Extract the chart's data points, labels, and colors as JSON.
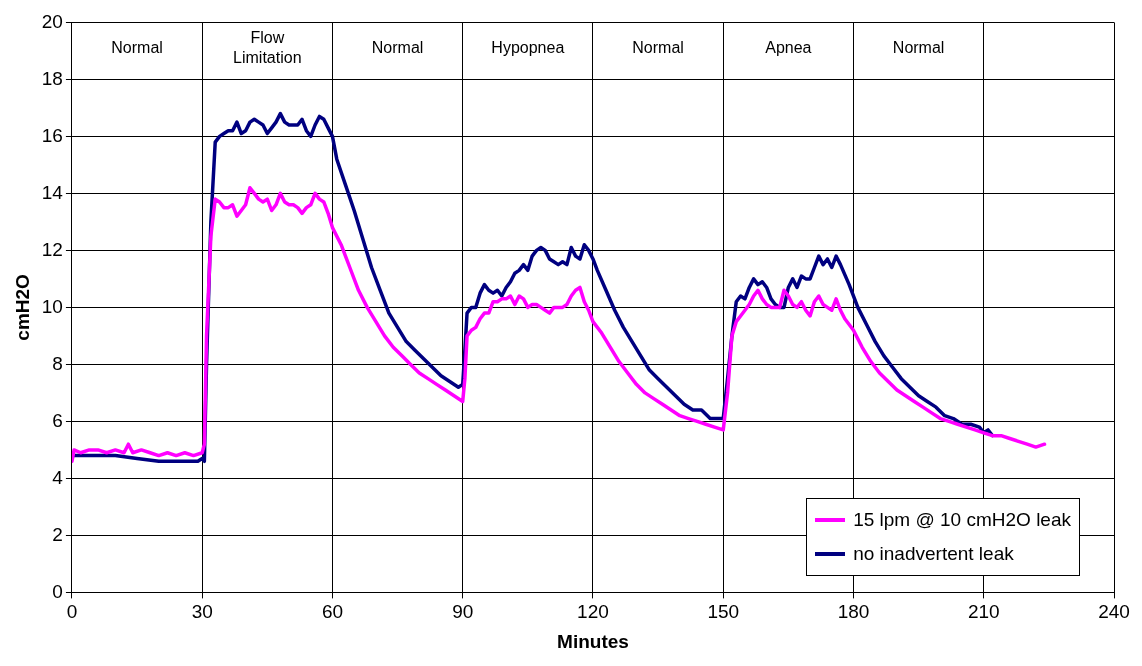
{
  "chart_data": {
    "type": "line",
    "xlabel": "Minutes",
    "ylabel": "cmH2O",
    "xlim": [
      0,
      240
    ],
    "xticks": [
      0,
      30,
      60,
      90,
      120,
      150,
      180,
      210,
      240
    ],
    "ylim": [
      0,
      20
    ],
    "yticks": [
      0,
      2,
      4,
      6,
      8,
      10,
      12,
      14,
      16,
      18,
      20
    ],
    "grid": true,
    "legend": "bottom right",
    "marker": "none",
    "line_style": "solid",
    "annotations": [
      "Normal",
      "Flow Limitation",
      "Normal",
      "Hypopnea",
      "Normal",
      "Apnea",
      "Normal"
    ],
    "series": [
      {
        "name": "15 lpm @ 10 cmH2O leak",
        "color": "#ff00ff",
        "x": [
          0,
          0.5,
          2,
          4,
          6,
          8,
          10,
          12,
          13,
          14,
          16,
          18,
          20,
          22,
          24,
          26,
          28,
          30,
          30.5,
          31,
          32,
          33,
          34,
          35,
          36,
          37,
          38,
          39,
          40,
          41,
          42,
          43,
          44,
          45,
          46,
          47,
          48,
          49,
          50,
          51,
          52,
          53,
          54,
          55,
          56,
          57,
          58,
          59,
          60,
          62,
          64,
          66,
          68,
          70,
          72,
          74,
          76,
          78,
          80,
          82,
          84,
          86,
          88,
          90,
          90.5,
          91,
          92,
          93,
          94,
          95,
          96,
          97,
          98,
          99,
          100,
          101,
          102,
          103,
          104,
          105,
          106,
          107,
          108,
          109,
          110,
          111,
          112,
          113,
          114,
          115,
          116,
          117,
          118,
          119,
          120,
          122,
          124,
          126,
          128,
          130,
          132,
          134,
          136,
          138,
          140,
          142,
          144,
          146,
          148,
          150,
          151,
          152,
          153,
          154,
          155,
          156,
          157,
          158,
          159,
          160,
          161,
          162,
          163,
          164,
          165,
          166,
          167,
          168,
          169,
          170,
          171,
          172,
          173,
          174,
          175,
          176,
          177,
          178,
          180,
          182,
          184,
          186,
          188,
          190,
          192,
          194,
          196,
          198,
          200,
          202,
          204,
          206,
          208,
          210,
          212,
          214,
          216,
          218,
          220,
          222,
          224
        ],
        "values": [
          4.6,
          5.0,
          4.9,
          5.0,
          5.0,
          4.9,
          5.0,
          4.9,
          5.2,
          4.9,
          5.0,
          4.9,
          4.8,
          4.9,
          4.8,
          4.9,
          4.8,
          4.9,
          5.2,
          9,
          12.5,
          13.8,
          13.7,
          13.5,
          13.5,
          13.6,
          13.2,
          13.4,
          13.6,
          14.2,
          14.0,
          13.8,
          13.7,
          13.8,
          13.4,
          13.6,
          14.0,
          13.7,
          13.6,
          13.6,
          13.5,
          13.3,
          13.5,
          13.6,
          14.0,
          13.8,
          13.7,
          13.3,
          12.8,
          12.2,
          11.4,
          10.6,
          10.0,
          9.5,
          9.0,
          8.6,
          8.3,
          8.0,
          7.7,
          7.5,
          7.3,
          7.1,
          6.9,
          6.7,
          7.5,
          9.0,
          9.2,
          9.3,
          9.6,
          9.8,
          9.8,
          10.2,
          10.2,
          10.3,
          10.3,
          10.4,
          10.1,
          10.4,
          10.3,
          10.0,
          10.1,
          10.1,
          10.0,
          9.9,
          9.8,
          10.0,
          10.0,
          10.0,
          10.1,
          10.4,
          10.6,
          10.7,
          10.2,
          9.9,
          9.5,
          9.1,
          8.6,
          8.1,
          7.7,
          7.3,
          7.0,
          6.8,
          6.6,
          6.4,
          6.2,
          6.1,
          6.0,
          5.9,
          5.8,
          5.7,
          7,
          9.0,
          9.5,
          9.7,
          9.9,
          10.1,
          10.4,
          10.6,
          10.3,
          10.1,
          10.0,
          10.0,
          10.0,
          10.6,
          10.4,
          10.1,
          10.0,
          10.2,
          9.9,
          9.7,
          10.2,
          10.4,
          10.1,
          10.0,
          9.9,
          10.3,
          9.9,
          9.6,
          9.2,
          8.6,
          8.1,
          7.7,
          7.4,
          7.1,
          6.9,
          6.7,
          6.5,
          6.3,
          6.1,
          6.0,
          5.9,
          5.8,
          5.7,
          5.6,
          5.5,
          5.5,
          5.4,
          5.3,
          5.2,
          5.1,
          5.2
        ]
      },
      {
        "name": "no inadvertent leak",
        "color": "#000080",
        "x": [
          0,
          5,
          10,
          15,
          20,
          25,
          29,
          30,
          30.5,
          31,
          32,
          33,
          34,
          35,
          36,
          37,
          38,
          39,
          40,
          41,
          42,
          43,
          44,
          45,
          46,
          47,
          48,
          49,
          50,
          52,
          53,
          54,
          55,
          56,
          57,
          58,
          59,
          60,
          61,
          63,
          65,
          67,
          69,
          71,
          73,
          75,
          77,
          79,
          81,
          83,
          85,
          87,
          89,
          90,
          90.5,
          91,
          92,
          93,
          94,
          95,
          96,
          97,
          98,
          99,
          100,
          101,
          102,
          103,
          104,
          105,
          106,
          107,
          108,
          109,
          110,
          111,
          112,
          113,
          114,
          115,
          116,
          117,
          118,
          119,
          120,
          121,
          123,
          125,
          127,
          129,
          131,
          133,
          135,
          137,
          139,
          141,
          143,
          145,
          147,
          149,
          150,
          151,
          152,
          153,
          154,
          155,
          156,
          157,
          158,
          159,
          160,
          161,
          162,
          163,
          164,
          165,
          166,
          167,
          168,
          169,
          170,
          171,
          172,
          173,
          174,
          175,
          176,
          177,
          179,
          181,
          183,
          185,
          187,
          189,
          191,
          193,
          195,
          197,
          199,
          201,
          203,
          205,
          207,
          209,
          210,
          211,
          212
        ],
        "values": [
          4.8,
          4.8,
          4.8,
          4.7,
          4.6,
          4.6,
          4.6,
          4.7,
          4.6,
          8,
          13,
          15.8,
          16.0,
          16.1,
          16.2,
          16.2,
          16.5,
          16.1,
          16.2,
          16.5,
          16.6,
          16.5,
          16.4,
          16.1,
          16.3,
          16.5,
          16.8,
          16.5,
          16.4,
          16.4,
          16.6,
          16.2,
          16.0,
          16.4,
          16.7,
          16.6,
          16.3,
          16.0,
          15.2,
          14.3,
          13.4,
          12.4,
          11.4,
          10.6,
          9.8,
          9.3,
          8.8,
          8.5,
          8.2,
          7.9,
          7.6,
          7.4,
          7.2,
          7.3,
          8.5,
          9.8,
          10.0,
          10.0,
          10.5,
          10.8,
          10.6,
          10.5,
          10.6,
          10.4,
          10.7,
          10.9,
          11.2,
          11.3,
          11.5,
          11.3,
          11.8,
          12.0,
          12.1,
          12.0,
          11.7,
          11.6,
          11.5,
          11.6,
          11.5,
          12.1,
          11.8,
          11.7,
          12.2,
          12.0,
          11.7,
          11.3,
          10.6,
          9.9,
          9.3,
          8.8,
          8.3,
          7.8,
          7.5,
          7.2,
          6.9,
          6.6,
          6.4,
          6.4,
          6.1,
          6.1,
          6.1,
          7.5,
          9.0,
          10.2,
          10.4,
          10.3,
          10.7,
          11.0,
          10.8,
          10.9,
          10.7,
          10.3,
          10.1,
          10.0,
          10.0,
          10.7,
          11.0,
          10.7,
          11.1,
          11.0,
          11.0,
          11.4,
          11.8,
          11.5,
          11.7,
          11.4,
          11.8,
          11.5,
          10.8,
          10.0,
          9.4,
          8.8,
          8.3,
          7.9,
          7.5,
          7.2,
          6.9,
          6.7,
          6.5,
          6.2,
          6.1,
          5.9,
          5.9,
          5.8,
          5.6,
          5.7,
          5.5
        ]
      }
    ]
  }
}
